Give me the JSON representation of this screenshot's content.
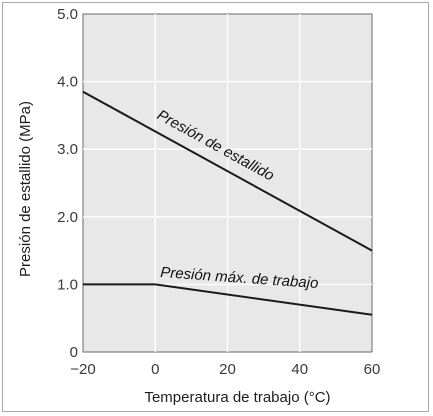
{
  "chart_data": {
    "type": "line",
    "xlabel": "Temperatura de trabajo (°C)",
    "ylabel": "Presión de estallido (MPa)",
    "xlim": [
      -20,
      60
    ],
    "ylim": [
      0,
      5.0
    ],
    "x_ticks": [
      "−20",
      "0",
      "20",
      "40",
      "60"
    ],
    "y_ticks": [
      "0",
      "1.0",
      "2.0",
      "3.0",
      "4.0",
      "5.0"
    ],
    "grid": true,
    "legend": "none",
    "series": [
      {
        "name": "Presión de estallido",
        "x": [
          -20,
          60
        ],
        "y": [
          3.85,
          1.5
        ]
      },
      {
        "name": "Presión máx. de trabajo",
        "x": [
          -20,
          0,
          60
        ],
        "y": [
          1.0,
          1.0,
          0.55
        ]
      }
    ],
    "colors": {
      "plot_bg": "#e8e8e8",
      "line": "#1a1a1a",
      "grid": "#ffffff"
    }
  }
}
